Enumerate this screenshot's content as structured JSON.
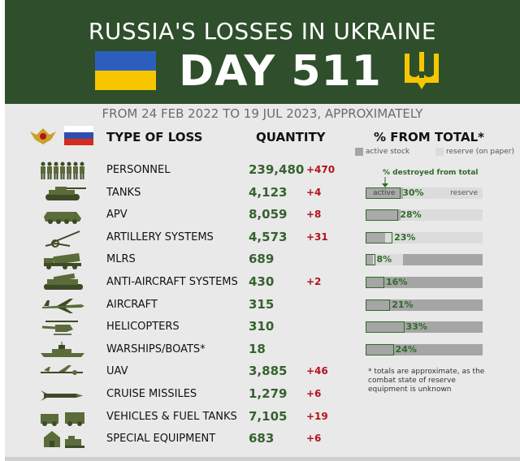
{
  "header": {
    "title": "RUSSIA'S LOSSES IN UKRAINE",
    "day": "DAY 511",
    "subtitle": "FROM 24 FEB 2022 TO 19 JUL 2023, APPROXIMATELY"
  },
  "columns": {
    "type": "TYPE OF LOSS",
    "quantity": "QUANTITY",
    "percent": "% FROM TOTAL*"
  },
  "legend": {
    "active": "active stock",
    "reserve": "reserve (on paper)",
    "destroyed": "% destroyed from total",
    "bar_active": "active",
    "bar_reserve": "reserve"
  },
  "colors": {
    "header_bg": "#2f4f2c",
    "quantity_green": "#36622f",
    "delta_red": "#b3141c",
    "active_stock": "#a5a5a5",
    "reserve_stock": "#dcdcdc",
    "ua_blue": "#2c5fbd",
    "ua_yellow": "#f7c600"
  },
  "rows": [
    {
      "name": "PERSONNEL",
      "quantity": "239,480",
      "delta": "+470",
      "icon": "soldiers-icon"
    },
    {
      "name": "TANKS",
      "quantity": "4,123",
      "delta": "+4",
      "icon": "tank-icon",
      "active_fraction": 0.32,
      "destroyed_pct": "30%",
      "destroyed_fraction": 0.3
    },
    {
      "name": "APV",
      "quantity": "8,059",
      "delta": "+8",
      "icon": "apv-icon",
      "active_fraction": 0.3,
      "destroyed_pct": "28%",
      "destroyed_fraction": 0.28
    },
    {
      "name": "ARTILLERY SYSTEMS",
      "quantity": "4,573",
      "delta": "+31",
      "icon": "artillery-icon",
      "active_fraction": 0.17,
      "destroyed_pct": "23%",
      "destroyed_fraction": 0.23
    },
    {
      "name": "MLRS",
      "quantity": "689",
      "delta": "",
      "icon": "mlrs-icon",
      "active_fraction": 0.06,
      "destroyed_pct": "8%",
      "destroyed_fraction": 0.08,
      "reserve_fraction": 0.32
    },
    {
      "name": "ANTI-AIRCRAFT SYSTEMS",
      "quantity": "430",
      "delta": "+2",
      "icon": "anti-aircraft-icon",
      "destroyed_pct": "16%",
      "destroyed_fraction": 0.16
    },
    {
      "name": "AIRCRAFT",
      "quantity": "315",
      "delta": "",
      "icon": "aircraft-icon",
      "destroyed_pct": "21%",
      "destroyed_fraction": 0.21
    },
    {
      "name": "HELICOPTERS",
      "quantity": "310",
      "delta": "",
      "icon": "helicopter-icon",
      "destroyed_pct": "33%",
      "destroyed_fraction": 0.33
    },
    {
      "name": "WARSHIPS/BOATS*",
      "quantity": "18",
      "delta": "",
      "icon": "warship-icon",
      "destroyed_pct": "24%",
      "destroyed_fraction": 0.24
    },
    {
      "name": "UAV",
      "quantity": "3,885",
      "delta": "+46",
      "icon": "uav-icon"
    },
    {
      "name": "CRUISE MISSILES",
      "quantity": "1,279",
      "delta": "+6",
      "icon": "missile-icon"
    },
    {
      "name": "VEHICLES & FUEL TANKS",
      "quantity": "7,105",
      "delta": "+19",
      "icon": "vehicles-icon"
    },
    {
      "name": "SPECIAL EQUIPMENT",
      "quantity": "683",
      "delta": "+6",
      "icon": "special-equipment-icon"
    }
  ],
  "note": "* totals are approximate, as the combat state of reserve equipment is unknown"
}
